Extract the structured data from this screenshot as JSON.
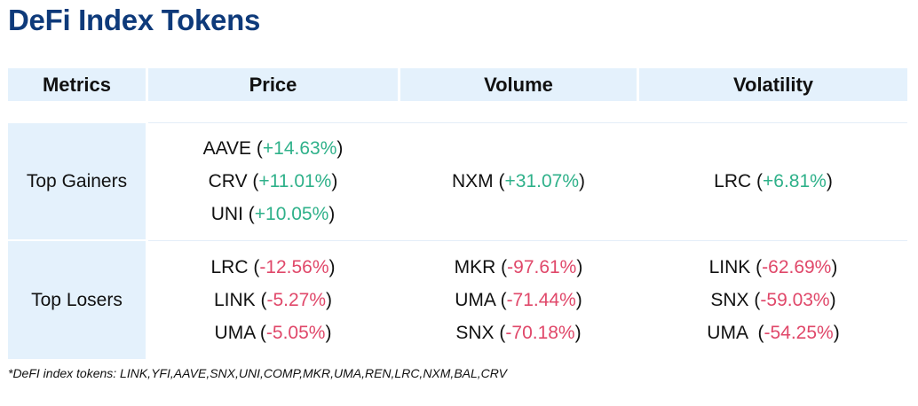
{
  "title": "DeFi Index Tokens",
  "colors": {
    "title": "#0e3a7a",
    "header_bg": "#e4f1fc",
    "positive": "#2fb18a",
    "negative": "#e0486a"
  },
  "table": {
    "headers": [
      "Metrics",
      "Price",
      "Volume",
      "Volatility"
    ],
    "rows": [
      {
        "metric": "Top Gainers",
        "price": [
          {
            "token": "AAVE",
            "change": "+14.63%"
          },
          {
            "token": "CRV",
            "change": "+11.01%"
          },
          {
            "token": "UNI",
            "change": "+10.05%"
          }
        ],
        "volume": [
          {
            "token": "NXM",
            "change": "+31.07%"
          }
        ],
        "volatility": [
          {
            "token": "LRC",
            "change": "+6.81%"
          }
        ]
      },
      {
        "metric": "Top Losers",
        "price": [
          {
            "token": "LRC",
            "change": "-12.56%"
          },
          {
            "token": "LINK",
            "change": "-5.27%"
          },
          {
            "token": "UMA",
            "change": "-5.05%"
          }
        ],
        "volume": [
          {
            "token": "MKR",
            "change": "-97.61%"
          },
          {
            "token": "UMA",
            "change": "-71.44%"
          },
          {
            "token": "SNX",
            "change": "-70.18%"
          }
        ],
        "volatility": [
          {
            "token": "LINK",
            "change": "-62.69%"
          },
          {
            "token": "SNX",
            "change": "-59.03%"
          },
          {
            "token": "UMA ",
            "change": "-54.25%"
          }
        ]
      }
    ]
  },
  "footnote": "*DeFI index tokens: LINK,YFI,AAVE,SNX,UNI,COMP,MKR,UMA,REN,LRC,NXM,BAL,CRV"
}
